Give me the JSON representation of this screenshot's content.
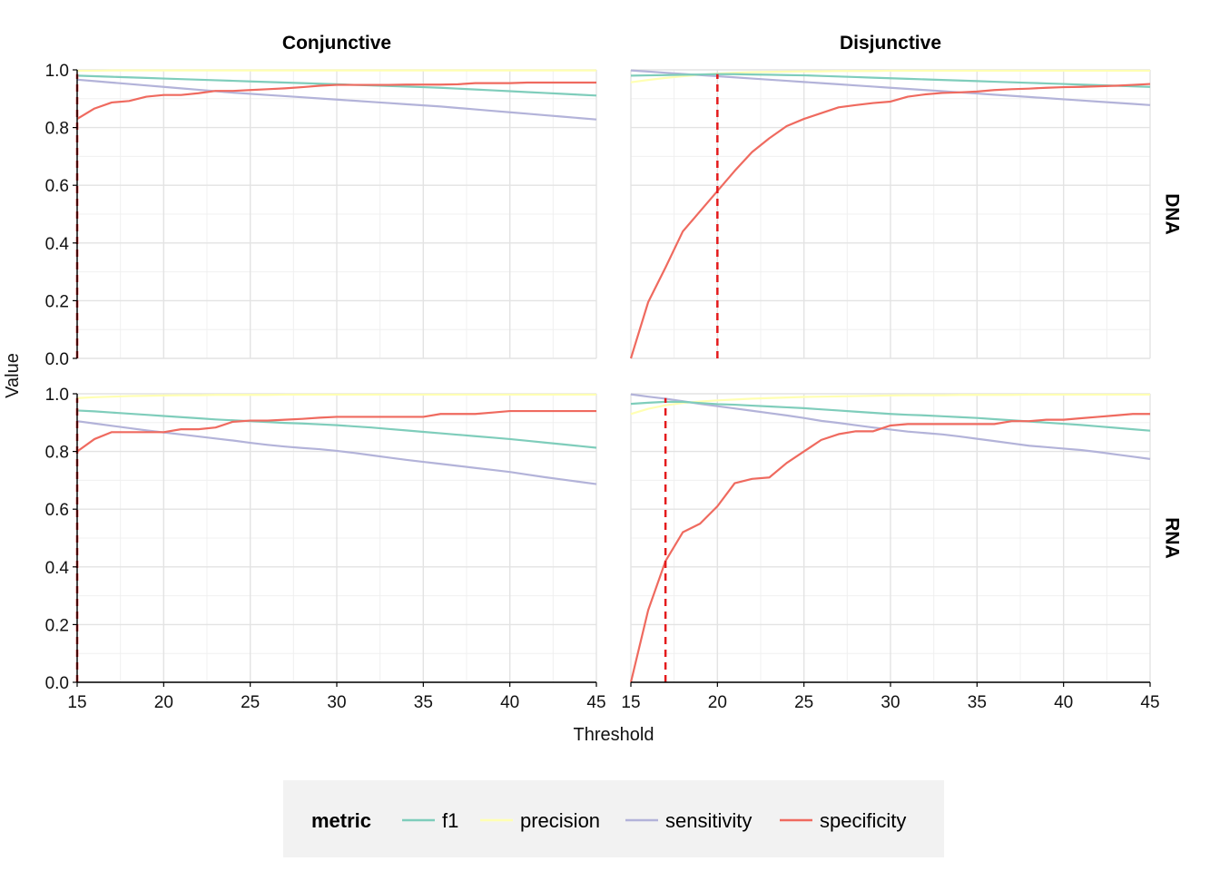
{
  "chart_data": {
    "type": "line",
    "xlabel": "Threshold",
    "ylabel": "Value",
    "xlim": [
      15,
      45
    ],
    "ylim": [
      0,
      1
    ],
    "x_ticks": [
      "15",
      "20",
      "25",
      "30",
      "35",
      "40",
      "45"
    ],
    "y_ticks": [
      "0.0",
      "0.2",
      "0.4",
      "0.6",
      "0.8",
      "1.0"
    ],
    "facet_columns": [
      "Conjunctive",
      "Disjunctive"
    ],
    "facet_rows": [
      "DNA",
      "RNA"
    ],
    "legend": {
      "title": "metric",
      "position": "bottom",
      "items": [
        {
          "label": "f1",
          "color": "#7fcdbb"
        },
        {
          "label": "precision",
          "color": "#ffffb3"
        },
        {
          "label": "sensitivity",
          "color": "#b3b3d9"
        },
        {
          "label": "specificity",
          "color": "#ef6a5f"
        }
      ]
    },
    "grid": true,
    "x": [
      15,
      16,
      17,
      18,
      19,
      20,
      21,
      22,
      23,
      24,
      25,
      26,
      27,
      28,
      29,
      30,
      31,
      32,
      33,
      34,
      35,
      36,
      37,
      38,
      39,
      40,
      41,
      42,
      43,
      44,
      45
    ],
    "panels": [
      {
        "column": "Conjunctive",
        "row": "DNA",
        "threshold_line": 15,
        "series": [
          {
            "name": "f1",
            "values": [
              0.98,
              0.978,
              0.976,
              0.974,
              0.972,
              0.97,
              0.968,
              0.966,
              0.964,
              0.962,
              0.96,
              0.958,
              0.956,
              0.954,
              0.952,
              0.95,
              0.948,
              0.946,
              0.944,
              0.942,
              0.94,
              0.938,
              0.935,
              0.932,
              0.929,
              0.926,
              0.923,
              0.92,
              0.917,
              0.914,
              0.911
            ]
          },
          {
            "name": "precision",
            "values": [
              0.997,
              0.997,
              0.998,
              0.998,
              0.998,
              0.998,
              0.998,
              0.998,
              0.998,
              0.998,
              0.998,
              0.998,
              0.998,
              0.998,
              0.998,
              0.998,
              0.998,
              0.998,
              0.998,
              0.998,
              0.998,
              0.998,
              0.998,
              0.998,
              0.998,
              0.998,
              0.998,
              0.998,
              0.998,
              0.998,
              0.998
            ]
          },
          {
            "name": "sensitivity",
            "values": [
              0.966,
              0.961,
              0.956,
              0.951,
              0.946,
              0.941,
              0.936,
              0.931,
              0.926,
              0.921,
              0.917,
              0.913,
              0.909,
              0.905,
              0.901,
              0.897,
              0.893,
              0.889,
              0.885,
              0.881,
              0.877,
              0.873,
              0.868,
              0.863,
              0.858,
              0.853,
              0.848,
              0.843,
              0.838,
              0.833,
              0.828
            ]
          },
          {
            "name": "specificity",
            "values": [
              0.83,
              0.866,
              0.887,
              0.892,
              0.907,
              0.913,
              0.913,
              0.919,
              0.927,
              0.927,
              0.93,
              0.933,
              0.936,
              0.94,
              0.945,
              0.948,
              0.948,
              0.948,
              0.948,
              0.949,
              0.949,
              0.949,
              0.95,
              0.954,
              0.954,
              0.954,
              0.956,
              0.956,
              0.956,
              0.956,
              0.956
            ]
          }
        ]
      },
      {
        "column": "Disjunctive",
        "row": "DNA",
        "threshold_line": 20,
        "series": [
          {
            "name": "f1",
            "values": [
              0.98,
              0.981,
              0.982,
              0.983,
              0.984,
              0.985,
              0.985,
              0.984,
              0.983,
              0.982,
              0.981,
              0.979,
              0.977,
              0.975,
              0.973,
              0.971,
              0.969,
              0.967,
              0.965,
              0.963,
              0.961,
              0.959,
              0.957,
              0.955,
              0.953,
              0.951,
              0.949,
              0.947,
              0.945,
              0.943,
              0.941
            ]
          },
          {
            "name": "precision",
            "values": [
              0.957,
              0.965,
              0.972,
              0.978,
              0.983,
              0.987,
              0.99,
              0.992,
              0.993,
              0.994,
              0.995,
              0.995,
              0.996,
              0.996,
              0.996,
              0.997,
              0.997,
              0.997,
              0.997,
              0.997,
              0.997,
              0.997,
              0.997,
              0.997,
              0.997,
              0.997,
              0.997,
              0.997,
              0.997,
              0.997,
              0.997
            ]
          },
          {
            "name": "sensitivity",
            "values": [
              0.998,
              0.994,
              0.99,
              0.986,
              0.982,
              0.978,
              0.974,
              0.97,
              0.966,
              0.962,
              0.958,
              0.954,
              0.95,
              0.946,
              0.942,
              0.938,
              0.934,
              0.93,
              0.926,
              0.922,
              0.918,
              0.914,
              0.91,
              0.906,
              0.902,
              0.898,
              0.894,
              0.89,
              0.886,
              0.882,
              0.878
            ]
          },
          {
            "name": "specificity",
            "values": [
              0.0,
              0.195,
              0.315,
              0.44,
              0.51,
              0.58,
              0.65,
              0.715,
              0.763,
              0.805,
              0.83,
              0.85,
              0.87,
              0.878,
              0.885,
              0.89,
              0.907,
              0.915,
              0.92,
              0.922,
              0.925,
              0.93,
              0.933,
              0.935,
              0.938,
              0.94,
              0.941,
              0.943,
              0.945,
              0.948,
              0.951
            ]
          }
        ]
      },
      {
        "column": "Conjunctive",
        "row": "RNA",
        "threshold_line": 15,
        "series": [
          {
            "name": "f1",
            "values": [
              0.942,
              0.939,
              0.935,
              0.931,
              0.927,
              0.923,
              0.919,
              0.915,
              0.911,
              0.908,
              0.905,
              0.902,
              0.899,
              0.897,
              0.894,
              0.891,
              0.887,
              0.883,
              0.878,
              0.873,
              0.868,
              0.863,
              0.858,
              0.853,
              0.848,
              0.843,
              0.837,
              0.831,
              0.825,
              0.819,
              0.813
            ]
          },
          {
            "name": "precision",
            "values": [
              0.985,
              0.988,
              0.99,
              0.992,
              0.993,
              0.994,
              0.995,
              0.995,
              0.996,
              0.996,
              0.996,
              0.996,
              0.997,
              0.997,
              0.997,
              0.997,
              0.997,
              0.997,
              0.997,
              0.997,
              0.997,
              0.997,
              0.997,
              0.997,
              0.997,
              0.997,
              0.997,
              0.997,
              0.997,
              0.997,
              0.997
            ]
          },
          {
            "name": "sensitivity",
            "values": [
              0.905,
              0.897,
              0.889,
              0.881,
              0.873,
              0.866,
              0.859,
              0.852,
              0.845,
              0.838,
              0.83,
              0.823,
              0.817,
              0.812,
              0.808,
              0.802,
              0.795,
              0.787,
              0.779,
              0.771,
              0.764,
              0.757,
              0.75,
              0.743,
              0.736,
              0.729,
              0.72,
              0.711,
              0.703,
              0.695,
              0.687
            ]
          },
          {
            "name": "specificity",
            "values": [
              0.8,
              0.843,
              0.867,
              0.867,
              0.867,
              0.867,
              0.877,
              0.877,
              0.883,
              0.903,
              0.907,
              0.907,
              0.91,
              0.913,
              0.917,
              0.92,
              0.92,
              0.92,
              0.92,
              0.92,
              0.92,
              0.93,
              0.93,
              0.93,
              0.935,
              0.94,
              0.94,
              0.94,
              0.94,
              0.94,
              0.94
            ]
          }
        ]
      },
      {
        "column": "Disjunctive",
        "row": "RNA",
        "threshold_line": 17,
        "series": [
          {
            "name": "f1",
            "values": [
              0.965,
              0.969,
              0.972,
              0.972,
              0.968,
              0.964,
              0.962,
              0.959,
              0.956,
              0.953,
              0.95,
              0.946,
              0.942,
              0.938,
              0.934,
              0.93,
              0.927,
              0.925,
              0.922,
              0.919,
              0.916,
              0.912,
              0.908,
              0.904,
              0.9,
              0.896,
              0.892,
              0.887,
              0.882,
              0.877,
              0.872
            ]
          },
          {
            "name": "precision",
            "values": [
              0.93,
              0.948,
              0.96,
              0.968,
              0.973,
              0.977,
              0.98,
              0.983,
              0.985,
              0.987,
              0.989,
              0.99,
              0.991,
              0.992,
              0.993,
              0.994,
              0.995,
              0.995,
              0.995,
              0.996,
              0.996,
              0.996,
              0.996,
              0.997,
              0.997,
              0.997,
              0.997,
              0.997,
              0.997,
              0.997,
              0.997
            ]
          },
          {
            "name": "sensitivity",
            "values": [
              0.998,
              0.99,
              0.983,
              0.974,
              0.965,
              0.957,
              0.949,
              0.941,
              0.933,
              0.925,
              0.916,
              0.906,
              0.899,
              0.891,
              0.883,
              0.876,
              0.869,
              0.864,
              0.859,
              0.852,
              0.844,
              0.836,
              0.828,
              0.82,
              0.815,
              0.81,
              0.805,
              0.798,
              0.79,
              0.782,
              0.774
            ]
          },
          {
            "name": "specificity",
            "values": [
              0.0,
              0.25,
              0.42,
              0.52,
              0.55,
              0.61,
              0.69,
              0.705,
              0.71,
              0.76,
              0.8,
              0.84,
              0.86,
              0.87,
              0.87,
              0.89,
              0.895,
              0.895,
              0.895,
              0.895,
              0.895,
              0.895,
              0.905,
              0.905,
              0.91,
              0.91,
              0.915,
              0.92,
              0.925,
              0.93,
              0.93
            ]
          }
        ]
      }
    ]
  }
}
